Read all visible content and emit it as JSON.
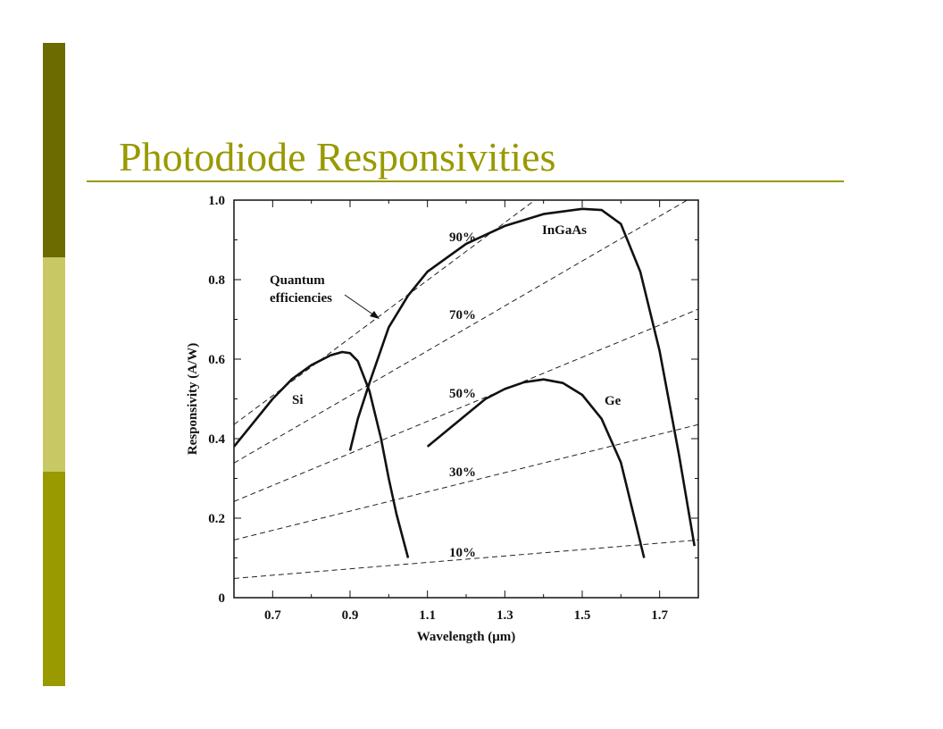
{
  "slide": {
    "title": "Photodiode Responsivities"
  },
  "colors": {
    "accent_dark": "#6b6b00",
    "accent_light": "#c8c864",
    "accent_mid": "#999900",
    "title": "#999900"
  },
  "chart_data": {
    "type": "line",
    "xlabel": "Wavelength (μm)",
    "ylabel": "Responsivity (A/W)",
    "xlim": [
      0.6,
      1.8
    ],
    "ylim": [
      0,
      1.0
    ],
    "xticks": [
      0.7,
      0.9,
      1.1,
      1.3,
      1.5,
      1.7
    ],
    "xtick_labels": [
      "0.7",
      "0.9",
      "1.1",
      "1.3",
      "1.5",
      "1.7"
    ],
    "yticks": [
      0,
      0.2,
      0.4,
      0.6,
      0.8,
      1.0
    ],
    "ytick_labels": [
      "0",
      "0.2",
      "0.4",
      "0.6",
      "0.8",
      "1.0"
    ],
    "grid": false,
    "series": [
      {
        "name": "Si",
        "style": "solid",
        "x": [
          0.6,
          0.65,
          0.7,
          0.75,
          0.8,
          0.85,
          0.88,
          0.9,
          0.92,
          0.95,
          0.98,
          1.0,
          1.02,
          1.05
        ],
        "y": [
          0.38,
          0.44,
          0.5,
          0.55,
          0.585,
          0.61,
          0.618,
          0.615,
          0.595,
          0.52,
          0.4,
          0.3,
          0.21,
          0.1
        ]
      },
      {
        "name": "InGaAs",
        "style": "solid",
        "x": [
          0.9,
          0.92,
          0.95,
          1.0,
          1.05,
          1.1,
          1.2,
          1.3,
          1.4,
          1.5,
          1.55,
          1.6,
          1.65,
          1.7,
          1.75,
          1.79
        ],
        "y": [
          0.37,
          0.45,
          0.54,
          0.68,
          0.76,
          0.82,
          0.89,
          0.935,
          0.965,
          0.978,
          0.975,
          0.94,
          0.82,
          0.62,
          0.36,
          0.13
        ]
      },
      {
        "name": "Ge",
        "style": "solid",
        "x": [
          1.1,
          1.15,
          1.2,
          1.25,
          1.3,
          1.35,
          1.4,
          1.45,
          1.5,
          1.55,
          1.6,
          1.63,
          1.66
        ],
        "y": [
          0.38,
          0.42,
          0.46,
          0.5,
          0.525,
          0.542,
          0.549,
          0.54,
          0.51,
          0.45,
          0.34,
          0.22,
          0.1
        ]
      }
    ],
    "quantum_efficiency_lines": [
      {
        "label": "90%",
        "eta": 0.9
      },
      {
        "label": "70%",
        "eta": 0.7
      },
      {
        "label": "50%",
        "eta": 0.5
      },
      {
        "label": "30%",
        "eta": 0.3
      },
      {
        "label": "10%",
        "eta": 0.1
      }
    ],
    "annotations": {
      "quantum_efficiencies_line1": "Quantum",
      "quantum_efficiencies_line2": "efficiencies",
      "si": "Si",
      "ingaas": "InGaAs",
      "ge": "Ge"
    }
  }
}
